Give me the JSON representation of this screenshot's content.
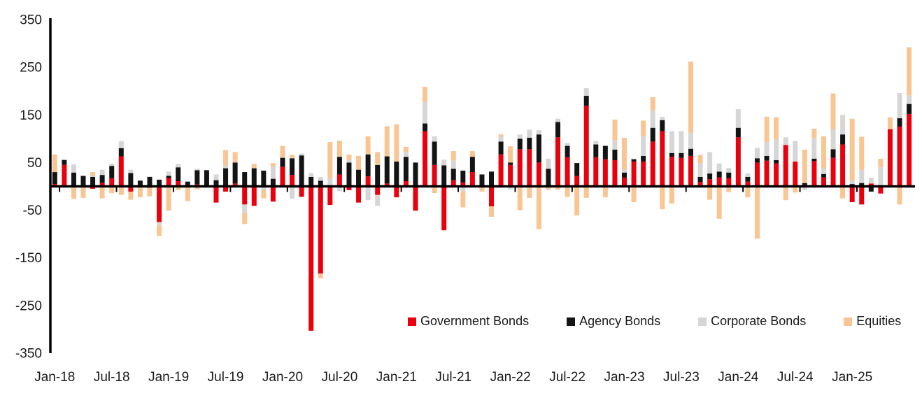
{
  "chart_data": {
    "type": "bar",
    "stacked": true,
    "title": "",
    "xlabel": "",
    "ylabel": "",
    "ylim": [
      -350,
      350
    ],
    "yticks": [
      350,
      250,
      150,
      50,
      -50,
      -150,
      -250,
      -350
    ],
    "grid": false,
    "background_color": "#ffffff",
    "axis_color": "#000000",
    "legend_position": "inside-bottom-right",
    "xtick_labels": [
      "Jan-18",
      "Jul-18",
      "Jan-19",
      "Jul-19",
      "Jan-20",
      "Jul-20",
      "Jan-21",
      "Jul-21",
      "Jan-22",
      "Jul-22",
      "Jan-23",
      "Jul-23",
      "Jan-24",
      "Jul-24",
      "Jan-25"
    ],
    "months": [
      "Jan-18",
      "Feb-18",
      "Mar-18",
      "Apr-18",
      "May-18",
      "Jun-18",
      "Jul-18",
      "Aug-18",
      "Sep-18",
      "Oct-18",
      "Nov-18",
      "Dec-18",
      "Jan-19",
      "Feb-19",
      "Mar-19",
      "Apr-19",
      "May-19",
      "Jun-19",
      "Jul-19",
      "Aug-19",
      "Sep-19",
      "Oct-19",
      "Nov-19",
      "Dec-19",
      "Jan-20",
      "Feb-20",
      "Mar-20",
      "Apr-20",
      "May-20",
      "Jun-20",
      "Jul-20",
      "Aug-20",
      "Sep-20",
      "Oct-20",
      "Nov-20",
      "Dec-20",
      "Jan-21",
      "Feb-21",
      "Mar-21",
      "Apr-21",
      "May-21",
      "Jun-21",
      "Jul-21",
      "Aug-21",
      "Sep-21",
      "Oct-21",
      "Nov-21",
      "Dec-21",
      "Jan-22",
      "Feb-22",
      "Mar-22",
      "Apr-22",
      "May-22",
      "Jun-22",
      "Jul-22",
      "Aug-22",
      "Sep-22",
      "Oct-22",
      "Nov-22",
      "Dec-22",
      "Jan-23",
      "Feb-23",
      "Mar-23",
      "Apr-23",
      "May-23",
      "Jun-23",
      "Jul-23",
      "Aug-23",
      "Sep-23",
      "Oct-23",
      "Nov-23",
      "Dec-23",
      "Jan-24",
      "Feb-24",
      "Mar-24",
      "Apr-24",
      "May-24",
      "Jun-24",
      "Jul-24",
      "Aug-24",
      "Sep-24",
      "Oct-24",
      "Nov-24",
      "Dec-24",
      "Jan-25",
      "Feb-25",
      "Mar-25",
      "Apr-25",
      "May-25",
      "Jun-25",
      "Jul-25"
    ],
    "series": [
      {
        "name": "Government Bonds",
        "color": "#e8000d",
        "values": [
          5,
          45,
          2,
          2,
          -5,
          7,
          17,
          63,
          -11,
          0,
          -3,
          -75,
          17,
          11,
          3,
          4,
          2,
          -34,
          -11,
          6,
          -38,
          -41,
          0,
          -32,
          41,
          24,
          -22,
          -303,
          -183,
          -39,
          25,
          -8,
          -34,
          21,
          -18,
          6,
          -23,
          11,
          -51,
          116,
          45,
          -92,
          13,
          8,
          30,
          0,
          -42,
          67,
          45,
          78,
          78,
          50,
          0,
          103,
          61,
          22,
          169,
          61,
          57,
          55,
          18,
          52,
          52,
          94,
          116,
          62,
          60,
          64,
          9,
          15,
          19,
          17,
          103,
          10,
          50,
          54,
          48,
          87,
          52,
          3,
          53,
          19,
          60,
          88,
          -33,
          -38,
          6,
          -15,
          120,
          125,
          152
        ]
      },
      {
        "name": "Agency Bonds",
        "color": "#141414",
        "values": [
          25,
          10,
          27,
          20,
          20,
          17,
          26,
          17,
          28,
          12,
          20,
          14,
          5,
          29,
          7,
          30,
          32,
          13,
          38,
          44,
          30,
          38,
          33,
          16,
          19,
          35,
          65,
          20,
          12,
          0,
          37,
          50,
          35,
          46,
          45,
          57,
          52,
          51,
          50,
          16,
          49,
          44,
          24,
          25,
          32,
          25,
          31,
          27,
          5,
          22,
          24,
          59,
          37,
          32,
          24,
          27,
          21,
          27,
          28,
          22,
          11,
          5,
          12,
          29,
          23,
          8,
          10,
          15,
          11,
          12,
          12,
          12,
          20,
          10,
          9,
          10,
          7,
          0,
          0,
          4,
          5,
          7,
          18,
          21,
          5,
          7,
          -11,
          0,
          0,
          18,
          21
        ]
      },
      {
        "name": "Corporate Bonds",
        "color": "#d6d6d6",
        "values": [
          0,
          3,
          17,
          0,
          2,
          11,
          5,
          15,
          7,
          0,
          0,
          -7,
          9,
          7,
          0,
          3,
          0,
          12,
          6,
          0,
          -18,
          0,
          -8,
          25,
          0,
          -26,
          4,
          8,
          8,
          17,
          -10,
          5,
          0,
          -29,
          -23,
          0,
          0,
          10,
          0,
          45,
          11,
          12,
          17,
          -10,
          0,
          0,
          0,
          10,
          -6,
          9,
          17,
          9,
          21,
          7,
          6,
          0,
          16,
          7,
          0,
          20,
          6,
          0,
          42,
          37,
          7,
          46,
          46,
          34,
          28,
          45,
          17,
          10,
          39,
          7,
          22,
          29,
          44,
          16,
          43,
          -8,
          43,
          12,
          42,
          41,
          7,
          27,
          12,
          40,
          0,
          53,
          18
        ]
      },
      {
        "name": "Equities",
        "color": "#f8c593",
        "values": [
          37,
          0,
          -26,
          -24,
          8,
          -25,
          -14,
          -18,
          -17,
          -23,
          -18,
          -22,
          -51,
          -8,
          -31,
          -6,
          0,
          0,
          32,
          22,
          -23,
          9,
          -17,
          8,
          25,
          7,
          0,
          0,
          -10,
          76,
          34,
          12,
          29,
          38,
          27,
          63,
          78,
          11,
          0,
          32,
          -14,
          0,
          20,
          -34,
          12,
          -11,
          -22,
          5,
          34,
          -50,
          -24,
          -90,
          -7,
          -7,
          -22,
          -61,
          -24,
          0,
          -23,
          43,
          67,
          -33,
          32,
          27,
          -48,
          -36,
          0,
          149,
          18,
          -28,
          -68,
          -12,
          0,
          -23,
          -110,
          53,
          46,
          -29,
          -13,
          70,
          20,
          67,
          75,
          -25,
          130,
          70,
          0,
          18,
          25,
          -38,
          101
        ]
      }
    ]
  }
}
